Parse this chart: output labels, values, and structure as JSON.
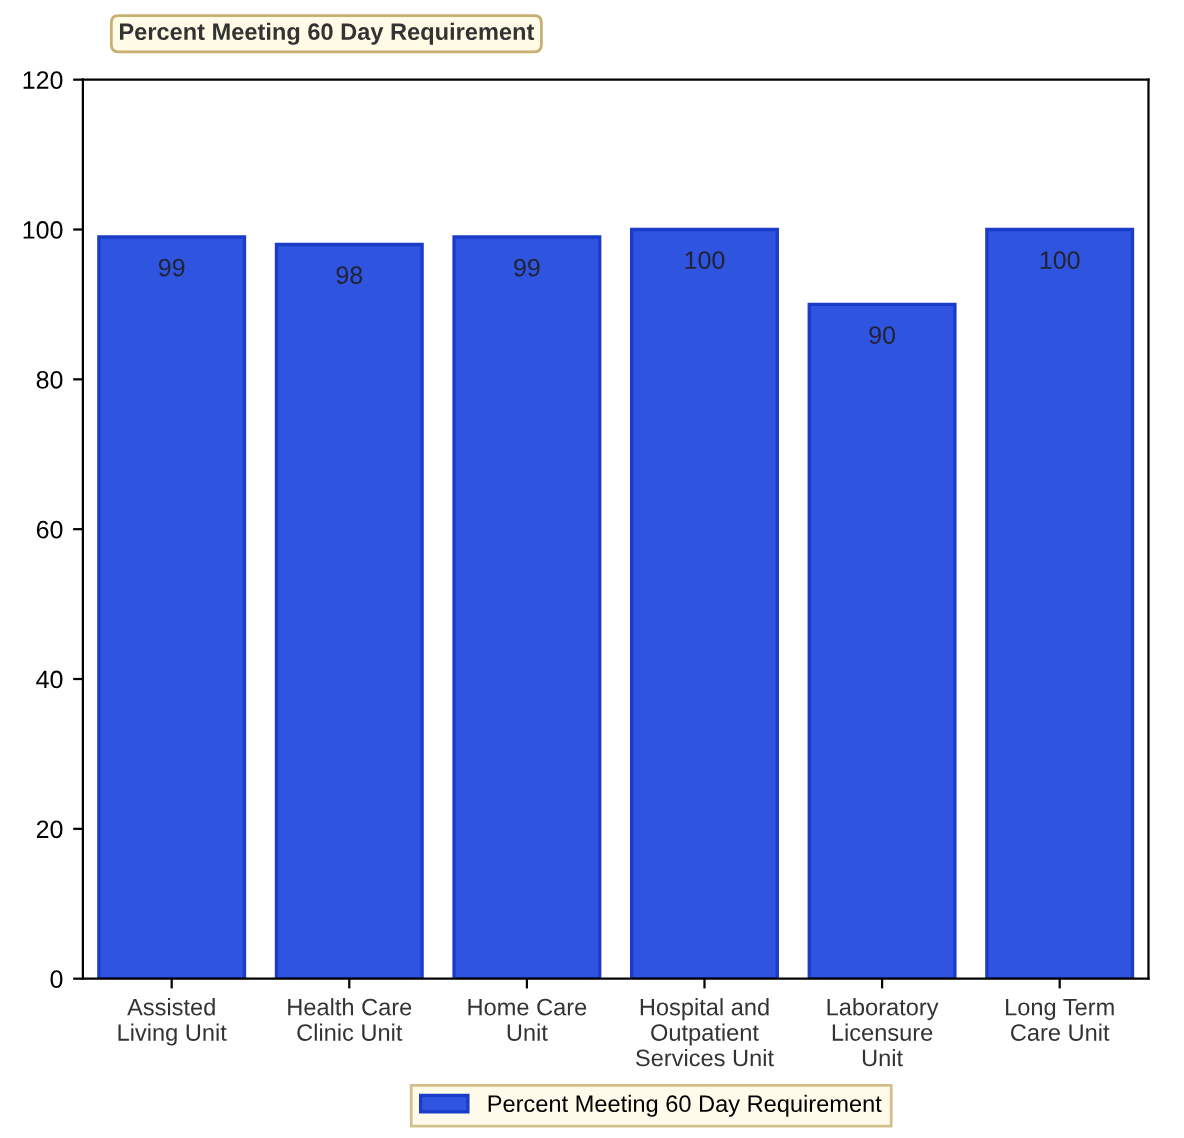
{
  "chart_data": {
    "type": "bar",
    "title": "Percent Meeting 60 Day Requirement",
    "categories": [
      "Assisted\nLiving Unit",
      "Health Care\nClinic Unit",
      "Home Care\nUnit",
      "Hospital and\nOutpatient\nServices Unit",
      "Laboratory\nLicensure\nUnit",
      "Long Term\nCare Unit"
    ],
    "series": [
      {
        "name": "Percent Meeting 60 Day Requirement",
        "color": "#2f55e0",
        "values": [
          99,
          98,
          99,
          100,
          90,
          100
        ]
      }
    ],
    "ylim": [
      0,
      120
    ],
    "yticks": [
      0,
      20,
      40,
      60,
      80,
      100,
      120
    ],
    "data_labels": true,
    "legend": "bottom",
    "grid": false
  }
}
